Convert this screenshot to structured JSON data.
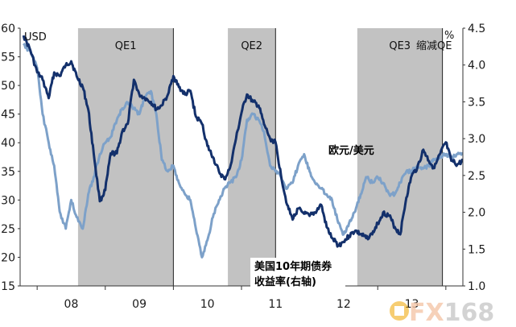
{
  "chart_data": {
    "type": "line",
    "title": "",
    "left_axis": {
      "unit": "USD",
      "ylim": [
        15,
        60
      ],
      "ticks": [
        "15",
        "20",
        "25",
        "30",
        "35",
        "40",
        "45",
        "50",
        "55",
        "60"
      ],
      "tick_values": [
        15,
        20,
        25,
        30,
        35,
        40,
        45,
        50,
        55,
        60
      ]
    },
    "right_axis": {
      "unit": "%",
      "ylim": [
        1.0,
        4.5
      ],
      "ticks": [
        "1.0",
        "1.5",
        "2.0",
        "2.5",
        "3.0",
        "3.5",
        "4.0",
        "4.5"
      ],
      "tick_values": [
        1.0,
        1.5,
        2.0,
        2.5,
        3.0,
        3.5,
        4.0,
        4.5
      ]
    },
    "x_axis": {
      "xlim": [
        2007.75,
        2014.25
      ],
      "ticks": [
        "08",
        "09",
        "10",
        "11",
        "12",
        "13"
      ],
      "tick_values": [
        2008.5,
        2009.5,
        2010.5,
        2011.5,
        2012.5,
        2013.5
      ],
      "year_boundaries": [
        2008,
        2009,
        2010,
        2011,
        2012,
        2013,
        2014
      ]
    },
    "bands": [
      {
        "label": "QE1",
        "start": 2008.6,
        "end": 2010.0
      },
      {
        "label": "QE2",
        "start": 2010.8,
        "end": 2011.5
      },
      {
        "label": "QE3",
        "start": 2012.7,
        "end": 2013.95
      }
    ],
    "event_lines": [
      {
        "label": "缩减QE",
        "x": 2013.95
      }
    ],
    "series": [
      {
        "name": "美国10年期债券收益率(右轴)",
        "axis": "right",
        "color": "#13306b",
        "x": [
          2007.8,
          2007.9,
          2008.0,
          2008.08,
          2008.17,
          2008.25,
          2008.33,
          2008.42,
          2008.5,
          2008.58,
          2008.67,
          2008.75,
          2008.83,
          2008.92,
          2009.0,
          2009.08,
          2009.17,
          2009.25,
          2009.33,
          2009.42,
          2009.5,
          2009.58,
          2009.67,
          2009.75,
          2009.83,
          2009.92,
          2010.0,
          2010.08,
          2010.17,
          2010.25,
          2010.33,
          2010.42,
          2010.5,
          2010.58,
          2010.67,
          2010.75,
          2010.83,
          2010.92,
          2011.0,
          2011.08,
          2011.17,
          2011.25,
          2011.33,
          2011.42,
          2011.5,
          2011.58,
          2011.67,
          2011.75,
          2011.83,
          2011.92,
          2012.0,
          2012.08,
          2012.17,
          2012.25,
          2012.33,
          2012.42,
          2012.5,
          2012.58,
          2012.67,
          2012.75,
          2012.83,
          2012.92,
          2013.0,
          2013.08,
          2013.17,
          2013.25,
          2013.33,
          2013.42,
          2013.5,
          2013.58,
          2013.67,
          2013.75,
          2013.83,
          2013.92,
          2014.0,
          2014.08,
          2014.17,
          2014.25
        ],
        "values": [
          4.4,
          4.2,
          3.9,
          3.8,
          3.55,
          3.9,
          3.85,
          4.0,
          4.05,
          3.85,
          3.7,
          3.4,
          2.8,
          2.15,
          2.3,
          2.8,
          2.8,
          3.1,
          3.2,
          3.8,
          3.6,
          3.55,
          3.5,
          3.4,
          3.45,
          3.6,
          3.85,
          3.7,
          3.6,
          3.65,
          3.3,
          3.2,
          2.9,
          2.75,
          2.55,
          2.45,
          2.6,
          3.0,
          3.35,
          3.6,
          3.5,
          3.45,
          3.2,
          3.0,
          2.95,
          2.5,
          2.1,
          1.9,
          2.05,
          1.98,
          1.95,
          2.0,
          2.1,
          1.8,
          1.65,
          1.55,
          1.6,
          1.68,
          1.75,
          1.7,
          1.65,
          1.7,
          1.85,
          2.0,
          1.95,
          1.8,
          1.7,
          2.2,
          2.5,
          2.6,
          2.85,
          2.7,
          2.6,
          2.8,
          2.95,
          2.7,
          2.65,
          2.7
        ]
      },
      {
        "name": "欧元/美元",
        "axis": "left",
        "color": "#7da1c9",
        "x": [
          2007.8,
          2007.9,
          2008.0,
          2008.08,
          2008.17,
          2008.25,
          2008.33,
          2008.42,
          2008.5,
          2008.58,
          2008.67,
          2008.75,
          2008.83,
          2008.92,
          2009.0,
          2009.08,
          2009.17,
          2009.25,
          2009.33,
          2009.42,
          2009.5,
          2009.58,
          2009.67,
          2009.75,
          2009.83,
          2009.92,
          2010.0,
          2010.08,
          2010.17,
          2010.25,
          2010.33,
          2010.42,
          2010.5,
          2010.58,
          2010.67,
          2010.75,
          2010.83,
          2010.92,
          2011.0,
          2011.08,
          2011.17,
          2011.25,
          2011.33,
          2011.42,
          2011.5,
          2011.58,
          2011.67,
          2011.75,
          2011.83,
          2011.92,
          2012.0,
          2012.08,
          2012.17,
          2012.25,
          2012.33,
          2012.42,
          2012.5,
          2012.58,
          2012.67,
          2012.75,
          2012.83,
          2012.92,
          2013.0,
          2013.08,
          2013.17,
          2013.25,
          2013.33,
          2013.42,
          2013.5,
          2013.58,
          2013.67,
          2013.75,
          2013.83,
          2013.92,
          2014.0,
          2014.08,
          2014.17,
          2014.25
        ],
        "values": [
          57,
          56,
          53,
          45,
          40,
          36,
          28,
          25,
          30,
          27,
          25,
          31,
          34,
          38,
          40,
          41,
          44,
          46,
          47,
          46,
          45,
          48,
          49,
          45,
          37,
          35,
          36,
          33,
          31,
          30,
          25,
          20,
          23,
          27,
          30,
          32,
          33,
          34,
          37,
          44,
          45,
          44,
          42,
          36,
          35,
          34,
          32,
          33,
          36,
          38,
          35,
          33,
          32,
          31,
          30,
          26,
          24,
          26,
          28,
          31,
          34,
          33,
          34,
          33,
          31,
          31,
          33,
          35,
          35,
          36,
          35.5,
          36,
          37,
          37.5,
          38,
          37.5,
          38,
          38
        ]
      }
    ],
    "annotations": [
      {
        "text": "欧元/美元",
        "series": "欧元/美元"
      },
      {
        "text": "美国10年期债券",
        "series": "美国10年期债券收益率(右轴)"
      },
      {
        "text": "收益率(右轴)",
        "series": "美国10年期债券收益率(右轴)"
      }
    ]
  },
  "watermark": {
    "part1": "FX",
    "part2": "168"
  }
}
